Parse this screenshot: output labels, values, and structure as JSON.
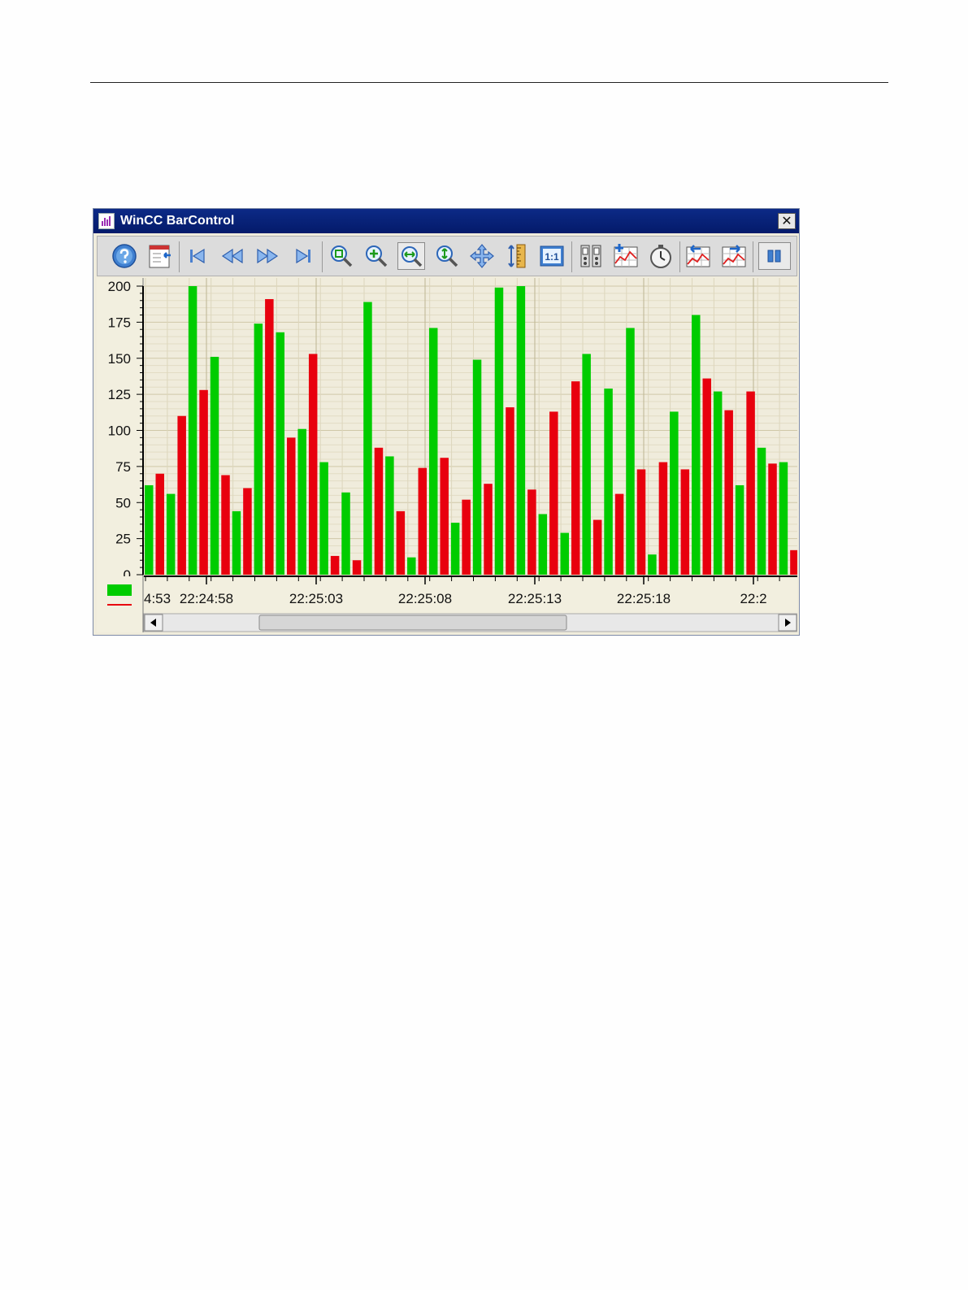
{
  "window": {
    "title": "WinCC BarControl",
    "close_label": "✕"
  },
  "toolbar": {
    "buttons": [
      {
        "name": "help-button",
        "icon": "help-icon"
      },
      {
        "name": "config-dialog-button",
        "icon": "config-dialog-icon"
      },
      {
        "name": "first-data-record-button",
        "icon": "skip-first-icon"
      },
      {
        "name": "previous-data-record-button",
        "icon": "rewind-icon"
      },
      {
        "name": "next-data-record-button",
        "icon": "fast-forward-icon"
      },
      {
        "name": "last-data-record-button",
        "icon": "skip-last-icon"
      },
      {
        "name": "zoom-area-button",
        "icon": "zoom-area-icon"
      },
      {
        "name": "zoom-in-button",
        "icon": "zoom-in-icon"
      },
      {
        "name": "zoom-time-axis-button",
        "icon": "zoom-time-axis-icon",
        "pressed": true
      },
      {
        "name": "zoom-value-axis-button",
        "icon": "zoom-value-axis-icon"
      },
      {
        "name": "move-area-button",
        "icon": "move-icon"
      },
      {
        "name": "move-axes-area-button",
        "icon": "ruler-icon"
      },
      {
        "name": "original-view-button",
        "icon": "one-to-one-icon"
      },
      {
        "name": "select-data-connection-button",
        "icon": "data-connection-icon"
      },
      {
        "name": "select-bars-button",
        "icon": "select-bars-icon"
      },
      {
        "name": "select-time-range-button",
        "icon": "stopwatch-icon"
      },
      {
        "name": "previous-bar-button",
        "icon": "previous-bar-icon"
      },
      {
        "name": "next-bar-button",
        "icon": "next-bar-icon"
      },
      {
        "name": "stop-button",
        "icon": "pause-icon",
        "pressed": true
      }
    ]
  },
  "colors": {
    "series_a": "#00cc00",
    "series_b": "#e8000e",
    "plot_bg": "#f0ecdc"
  },
  "chart_data": {
    "type": "bar",
    "ylim": [
      0,
      200
    ],
    "yticks": [
      "200",
      "175",
      "150",
      "125",
      "100",
      "75",
      "50",
      "25",
      "0"
    ],
    "xticks": [
      "4:53",
      "22:24:58",
      "22:25:03",
      "22:25:08",
      "22:25:13",
      "22:25:18",
      "22:2"
    ],
    "grid": true,
    "legend": "bottom-left",
    "series": [
      {
        "color": "#00cc00",
        "values": [
          62,
          56,
          200,
          151,
          44,
          174,
          168,
          101,
          78,
          57,
          189,
          82,
          12,
          171,
          36,
          149,
          199,
          200,
          42,
          29,
          153,
          129,
          171,
          14,
          113,
          180,
          127,
          62,
          88,
          78
        ]
      },
      {
        "color": "#e8000e",
        "values": [
          70,
          110,
          128,
          69,
          60,
          191,
          95,
          153,
          13,
          10,
          88,
          44,
          74,
          81,
          52,
          63,
          116,
          59,
          113,
          134,
          38,
          56,
          73,
          78,
          73,
          136,
          114,
          127,
          77,
          17
        ]
      }
    ]
  }
}
